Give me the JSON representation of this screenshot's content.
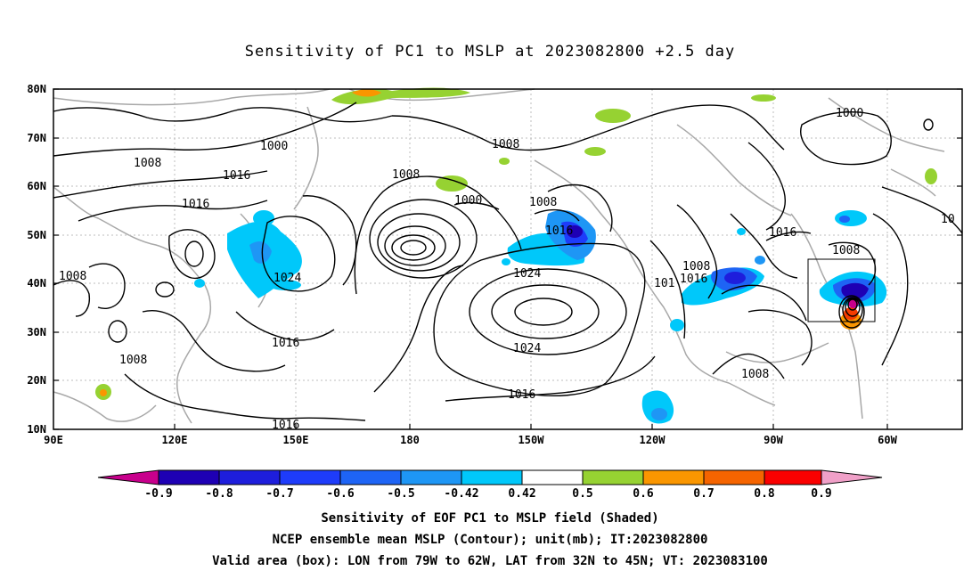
{
  "title": "Sensitivity of PC1 to MSLP at 2023082800 +2.5 day",
  "lat_labels": [
    "80N",
    "70N",
    "60N",
    "50N",
    "40N",
    "30N",
    "20N",
    "10N"
  ],
  "lon_labels": [
    "90E",
    "120E",
    "150E",
    "180",
    "150W",
    "120W",
    "90W",
    "60W"
  ],
  "contour_labels": [
    "1000",
    "1008",
    "1016",
    "1016",
    "1008",
    "1008",
    "1000",
    "1008",
    "1016",
    "1024",
    "1024",
    "1016",
    "1008",
    "1016",
    "1024",
    "1016",
    "1008",
    "1016",
    "101",
    "1008",
    "1008",
    "1016",
    "1008",
    "1000",
    "10"
  ],
  "colorbar": {
    "labels": [
      "-0.9",
      "-0.8",
      "-0.7",
      "-0.6",
      "-0.5",
      "-0.42",
      "0.42",
      "0.5",
      "0.6",
      "0.7",
      "0.8",
      "0.9"
    ],
    "colors": [
      "#c8008c",
      "#1e00b4",
      "#1e1edc",
      "#1e3cfa",
      "#1e64f5",
      "#1e96f5",
      "#00c8fa",
      "#ffffff",
      "#96d232",
      "#fa9600",
      "#f56400",
      "#f53c00",
      "#fa0000",
      "#f0a0c8"
    ]
  },
  "footer": {
    "line1": "Sensitivity of EOF PC1 to MSLP field (Shaded)",
    "line2": "NCEP ensemble mean MSLP (Contour); unit(mb); IT:2023082800",
    "line3": "Valid area (box): LON from 79W to 62W, LAT from 32N to 45N; VT: 2023083100"
  },
  "valid_box": {
    "lon": [
      -79,
      -62
    ],
    "lat": [
      32,
      45
    ]
  }
}
